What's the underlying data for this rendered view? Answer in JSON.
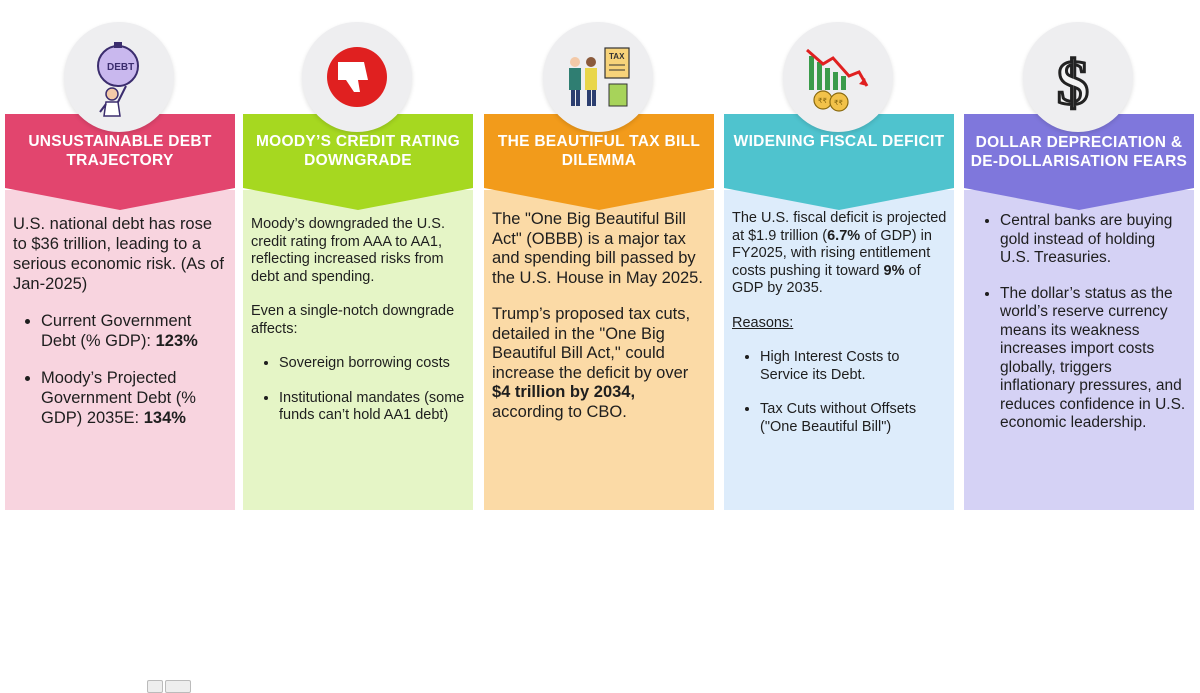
{
  "colors": {
    "pink": "#e2456e",
    "green": "#a6d820",
    "orange": "#f29b1b",
    "teal": "#4fc3ce",
    "purple": "#7f77dc"
  },
  "cards": [
    {
      "icon": "debt-weight-person-icon",
      "title": "UNSUSTAINABLE DEBT TRAJECTORY",
      "intro": "U.S. national debt has rose to $36 trillion, leading to a serious economic risk. (As of Jan-2025)",
      "bullet1": "Current Government Debt (% GDP): ",
      "bullet1_value": "123%",
      "bullet2": "Moody’s Projected Government Debt  (% GDP) 2035E:  ",
      "bullet2_value": "134%"
    },
    {
      "icon": "thumbs-down-icon",
      "title": "MOODY’S CREDIT RATING DOWNGRADE",
      "intro": "Moody’s downgraded the U.S. credit rating from AAA to AA1, reflecting increased risks from debt and spending.",
      "intro2": "Even a single-notch downgrade affects:",
      "bullet1": "Sovereign borrowing costs",
      "bullet2": "Institutional mandates (some funds can’t hold AA1 debt)"
    },
    {
      "icon": "tax-bill-people-icon",
      "title": "THE BEAUTIFUL TAX BILL DILEMMA",
      "intro": "The \"One Big Beautiful Bill Act\" (OBBB) is a major tax and spending bill passed by the U.S. House in May 2025.",
      "para2_a": "Trump’s proposed tax cuts, detailed in the \"One Big Beautiful Bill Act,\" could increase the deficit by over ",
      "para2_bold": "$4 trillion by 2034,",
      "para2_b": " according to CBO."
    },
    {
      "icon": "declining-chart-coins-icon",
      "title": "WIDENING FISCAL DEFICIT",
      "intro_a": "The U.S. fiscal deficit is projected at $1.9 trillion (",
      "intro_bold1": "6.7%",
      "intro_b": " of GDP) in FY2025, with rising entitlement costs pushing it toward ",
      "intro_bold2": "9%",
      "intro_c": " of GDP by 2035.",
      "reasons_label": "Reasons:",
      "bullet1": " High Interest Costs to Service its Debt.",
      "bullet2": "Tax Cuts without Offsets (\"One Beautiful Bill\")"
    },
    {
      "icon": "dollar-sign-icon",
      "title": "DOLLAR DEPRECIATION & DE-DOLLARISATION FEARS",
      "bullet1": "Central banks  are buying gold instead of holding U.S. Treasuries.",
      "bullet2": "The dollar’s status as the world’s reserve currency means its weakness increases import costs globally, triggers inflationary pressures, and reduces confidence in U.S. economic leadership."
    }
  ]
}
